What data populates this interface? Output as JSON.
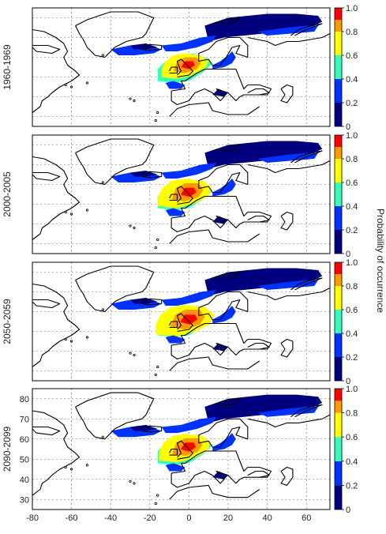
{
  "figure": {
    "colorbar_label": "Probability of occurrence",
    "colorbar_ticks": [
      "0",
      "0.2",
      "0.4",
      "0.6",
      "0.8",
      "1.0"
    ],
    "colorbar_colors": [
      "#00007f",
      "#0032ff",
      "#33ffbb",
      "#ffff00",
      "#ff9900",
      "#ff0000"
    ],
    "x_ticks": [
      "-80",
      "-60",
      "-40",
      "-20",
      "0",
      "20",
      "40",
      "60"
    ],
    "y_ticks": [
      "30",
      "40",
      "50",
      "60",
      "70",
      "80"
    ],
    "x_range": [
      -80,
      72
    ],
    "y_range": [
      25,
      85
    ]
  },
  "panels": [
    {
      "label": "1960-1969",
      "hot_extent": 1.0
    },
    {
      "label": "2000-2005",
      "hot_extent": 1.15
    },
    {
      "label": "2050-2059",
      "hot_extent": 1.25
    },
    {
      "label": "2090-2099",
      "hot_extent": 1.1
    }
  ]
}
